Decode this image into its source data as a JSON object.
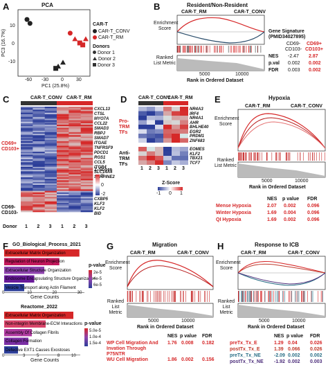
{
  "panels": {
    "A": {
      "label": "A",
      "title": "PCA",
      "xlabel": "PC1 (25.8%)",
      "ylabel": "PC3 (16.7%)",
      "xticks": [
        "-60",
        "-30",
        "0",
        "30"
      ],
      "yticks": [
        "10",
        "0",
        "-10"
      ],
      "legend_group_title": "CAR-T",
      "legend_group_items": [
        "CAR-T_CONV",
        "CAR-T_RM"
      ],
      "legend_donor_title": "Donors",
      "legend_donor_items": [
        "Donor 1",
        "Donor 2",
        "Donor 3"
      ]
    },
    "B": {
      "label": "B",
      "title": "Resident/Non-Resident",
      "left_group": "CAR-T_RM",
      "right_group": "CAR-T_CONV",
      "ylabel_top": "Enrichment Score",
      "ylabel_bottom": "Ranked List Metric",
      "xlabel": "Rank in Ordered Dataset",
      "xticks": [
        "5000",
        "10000"
      ],
      "gene_signature_title": "Gene Signature (PMID34027895)",
      "col_left": "CD69- CD103-",
      "col_right": "CD69+ CD103+",
      "stats": [
        {
          "name": "NES",
          "left": "-2.47",
          "right": "2.87"
        },
        {
          "name": "p.val",
          "left": "0.002",
          "right": "0.002"
        },
        {
          "name": "FDR",
          "left": "0.003",
          "right": "0.002"
        }
      ]
    },
    "C": {
      "label": "C",
      "col_groups": [
        "CAR-T_CONV",
        "CAR-T_RM"
      ],
      "row_group_top": "CD69+ CD103+",
      "row_group_bottom": "CD69- CD103-",
      "genes_top": [
        "CXCL13",
        "CTSL",
        "MYO7A",
        "CCL22",
        "SMAD3",
        "RBPJ",
        "SMAD7",
        "ITGAE",
        "TNFRSF9",
        "PDCD1",
        "RGS1",
        "CCL5",
        "ITGB4",
        "SLC14A4",
        "SERPINE2"
      ],
      "genes_bottom": [
        "CXBP5",
        "KLF3",
        "KLF2",
        "BID"
      ],
      "donor_label": "Donor",
      "donors": [
        "1",
        "2",
        "3",
        "1",
        "2",
        "3"
      ],
      "zscore_title": "Z-Score",
      "zscore_ticks": [
        "2",
        "0",
        "-2"
      ]
    },
    "D": {
      "label": "D",
      "col_groups": [
        "CAR-T_CONV",
        "CAR-T_RM"
      ],
      "row_group_top": "Pro-TRM TFs",
      "row_group_bottom": "Anti-TRM TFs",
      "genes_top": [
        "NR4A3",
        "IRF4",
        "NR4A1",
        "AHR",
        "BHLHE40",
        "EGR2",
        "PRDM1",
        "ZNF683"
      ],
      "genes_bottom": [
        "EOMES",
        "KLF2",
        "TBX21",
        "TCF7"
      ],
      "donors": [
        "1",
        "2",
        "3",
        "1",
        "2",
        "3"
      ],
      "zscore_title": "Z-Score",
      "zscore_ticks": [
        "-1",
        "0",
        "1"
      ]
    },
    "E": {
      "label": "E",
      "title": "Hypoxia",
      "left_group": "CAR-T_RM",
      "right_group": "CAR-T_CONV",
      "ylabel_top": "Enrichment Score",
      "ylabel_bottom": "Ranked List Metric",
      "xlabel": "Rank in Ordered Dataset",
      "xticks": [
        "5000",
        "10000"
      ],
      "headers": [
        "NES",
        "p value",
        "FDR"
      ],
      "rows": [
        {
          "name": "Mense Hypoxia",
          "nes": "2.07",
          "p": "0.002",
          "fdr": "0.096"
        },
        {
          "name": "Winter Hypoxia",
          "nes": "1.69",
          "p": "0.004",
          "fdr": "0.096"
        },
        {
          "name": "QI Hypoxia",
          "nes": "1.69",
          "p": "0.002",
          "fdr": "0.096"
        }
      ]
    },
    "F": {
      "label": "F",
      "go_title": "GO_Biological_Process_2021",
      "go_terms": [
        "Extracellular Matrix Organization",
        "Regulation of Neuron Projection",
        "Extracellular Structure Organization",
        "Endosome Encapsulating Structure Organization",
        "Vesicle Transport along Actin Filament"
      ],
      "go_xlabel": "Gene Counts",
      "go_xticks": [
        "0",
        "10",
        "20",
        "30"
      ],
      "go_legend_title": "p-value",
      "go_legend_ticks": [
        "2e-5",
        "4e-5",
        "6e-5"
      ],
      "reactome_title": "Reactome_2022",
      "reactome_terms": [
        "Extracellular Matrix Organization",
        "Non-integrin Membrane-ECM Interactions",
        "Assembly Of Collagen Fibrils",
        "Collagen Formation",
        "Defective EXT1 Causes Exostoses"
      ],
      "reactome_xlabel": "Gene Counts",
      "reactome_xticks": [
        "0",
        "3",
        "5",
        "8",
        "10"
      ],
      "reactome_legend_title": "p-value",
      "reactome_legend_ticks": [
        "5.0e-5",
        "1.0e-4",
        "1.5e-4"
      ]
    },
    "G": {
      "label": "G",
      "title": "Migration",
      "left_group": "CAR-T_RM",
      "right_group": "CAR-T_CONV",
      "ylabel_top": "Enrichment Score",
      "ylabel_bottom": "Ranked List Metric",
      "xlabel": "Rank in Ordered Dataset",
      "xticks": [
        "5000",
        "10000"
      ],
      "headers": [
        "NES",
        "p value",
        "FDR"
      ],
      "rows": [
        {
          "name": "WP Cell Migration And Invation Through P75NTR",
          "nes": "1.76",
          "p": "0.008",
          "fdr": "0.182"
        },
        {
          "name": "WU Cell Migration",
          "nes": "1.86",
          "p": "0.002",
          "fdr": "0.156"
        }
      ]
    },
    "H": {
      "label": "H",
      "title": "Response to ICB",
      "left_group": "CAR-T_RM",
      "right_group": "CAR-T_CONV",
      "ylabel_top": "Enrichment Score",
      "ylabel_bottom": "Ranked List Metric",
      "xlabel": "Rank in Ordered Dataset",
      "xticks": [
        "5000",
        "10000"
      ],
      "headers": [
        "NES",
        "p value",
        "FDR"
      ],
      "rows": [
        {
          "name": "preTx_Tx_E",
          "nes": "1.29",
          "p": "0.04",
          "fdr": "0.026",
          "color": "#d62728"
        },
        {
          "name": "postTx_Tx_E",
          "nes": "1.39",
          "p": "0.066",
          "fdr": "0.026",
          "color": "#c0392b"
        },
        {
          "name": "preTx_Tx_NE",
          "nes": "-2.09",
          "p": "0.002",
          "fdr": "0.002",
          "color": "#2a6f86"
        },
        {
          "name": "postTx_Tx_NE",
          "nes": "-1.92",
          "p": "0.002",
          "fdr": "0.003",
          "color": "#4b2c7a"
        }
      ]
    }
  },
  "chart_data": [
    {
      "type": "scatter",
      "title": "PCA",
      "xlabel": "PC1 (25.8%)",
      "ylabel": "PC3 (16.7%)",
      "xlim": [
        -75,
        45
      ],
      "ylim": [
        -17,
        17
      ],
      "series": [
        {
          "name": "CAR-T_CONV",
          "color": "#222222",
          "points": [
            {
              "x": -60,
              "y": 12,
              "donor": "Donor 1"
            },
            {
              "x": -55,
              "y": 10,
              "donor": "Donor 1"
            },
            {
              "x": -8,
              "y": -12,
              "donor": "Donor 2"
            },
            {
              "x": 0,
              "y": -10,
              "donor": "Donor 2"
            },
            {
              "x": -12,
              "y": -13,
              "donor": "Donor 3"
            }
          ]
        },
        {
          "name": "CAR-T_RM",
          "color": "#d62728",
          "points": [
            {
              "x": 12,
              "y": 5,
              "donor": "Donor 1"
            },
            {
              "x": 20,
              "y": 2,
              "donor": "Donor 2"
            },
            {
              "x": 28,
              "y": 0,
              "donor": "Donor 3"
            },
            {
              "x": 33,
              "y": -1,
              "donor": "Donor 3"
            },
            {
              "x": 38,
              "y": 2,
              "donor": "Donor 2"
            }
          ]
        }
      ]
    },
    {
      "type": "bar",
      "title": "GO_Biological_Process_2021",
      "categories": [
        "Extracellular Matrix Organization",
        "Regulation of Neuron Projection",
        "Extracellular Structure Organization",
        "Endosome Encapsulating Structure Organization",
        "Vesicle Transport along Actin Filament"
      ],
      "values": [
        30,
        22,
        16,
        12,
        8
      ],
      "colors": [
        "#d62728",
        "#c2185b",
        "#8e44ad",
        "#6a1b9a",
        "#2c3e99"
      ],
      "xlabel": "Gene Counts",
      "xlim": [
        0,
        32
      ]
    },
    {
      "type": "bar",
      "title": "Reactome_2022",
      "categories": [
        "Extracellular Matrix Organization",
        "Non-integrin Membrane-ECM Interactions",
        "Assembly Of Collagen Fibrils",
        "Collagen Formation",
        "Defective EXT1 Causes Exostoses"
      ],
      "values": [
        10,
        6,
        4,
        3.5,
        2
      ],
      "colors": [
        "#d62728",
        "#d9446a",
        "#b03aa0",
        "#7b2fa5",
        "#2c3e99"
      ],
      "xlabel": "Gene Counts",
      "xlim": [
        0,
        11
      ]
    }
  ]
}
